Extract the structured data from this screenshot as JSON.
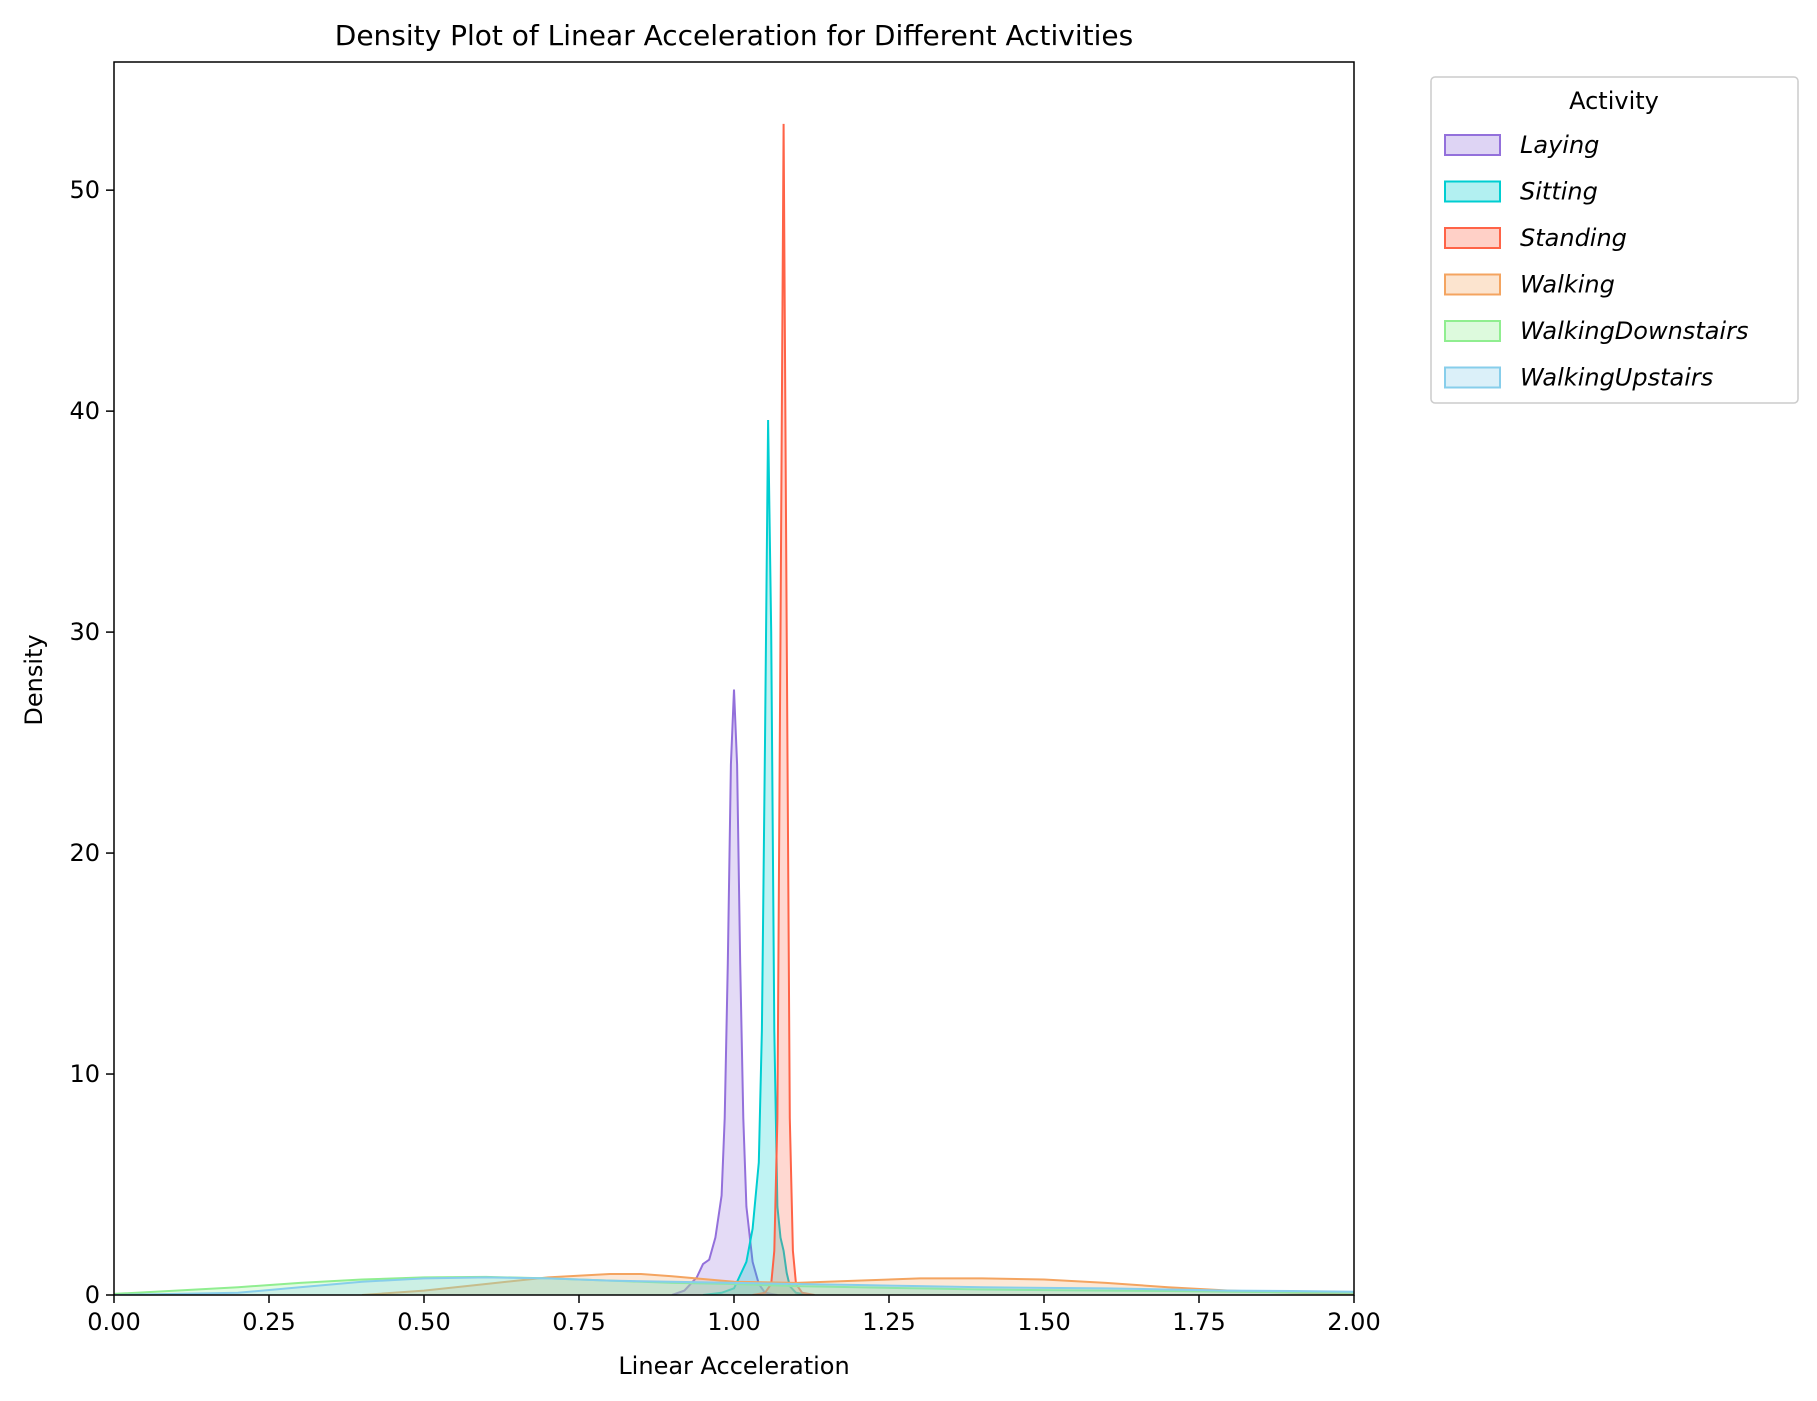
{
  "chart_data": {
    "type": "area",
    "title": "Density Plot of Linear Acceleration for Different Activities",
    "xlabel": "Linear Acceleration",
    "ylabel": "Density",
    "xlim": [
      0.0,
      2.0
    ],
    "ylim": [
      0,
      55.8
    ],
    "x_ticks": [
      "0.00",
      "0.25",
      "0.50",
      "0.75",
      "1.00",
      "1.25",
      "1.50",
      "1.75",
      "2.00"
    ],
    "y_ticks": [
      "0",
      "10",
      "20",
      "30",
      "40",
      "50"
    ],
    "grid": false,
    "legend": {
      "title": "Activity",
      "placement": "outside-top-right"
    },
    "series": [
      {
        "name": "Laying",
        "color": "#9370db",
        "points": [
          [
            0.9,
            0
          ],
          [
            0.92,
            0.2
          ],
          [
            0.94,
            0.8
          ],
          [
            0.95,
            1.4
          ],
          [
            0.96,
            1.6
          ],
          [
            0.97,
            2.6
          ],
          [
            0.98,
            4.5
          ],
          [
            0.985,
            8
          ],
          [
            0.99,
            15
          ],
          [
            0.995,
            24
          ],
          [
            1.0,
            27.4
          ],
          [
            1.005,
            24
          ],
          [
            1.01,
            15
          ],
          [
            1.015,
            8
          ],
          [
            1.02,
            4
          ],
          [
            1.03,
            1.5
          ],
          [
            1.04,
            0.5
          ],
          [
            1.05,
            0.1
          ],
          [
            1.07,
            0
          ]
        ]
      },
      {
        "name": "Sitting",
        "color": "#00ced1",
        "points": [
          [
            0.95,
            0
          ],
          [
            0.98,
            0.1
          ],
          [
            1.0,
            0.3
          ],
          [
            1.02,
            1.5
          ],
          [
            1.03,
            3
          ],
          [
            1.04,
            6
          ],
          [
            1.045,
            12
          ],
          [
            1.05,
            25
          ],
          [
            1.055,
            39.6
          ],
          [
            1.06,
            30
          ],
          [
            1.065,
            12
          ],
          [
            1.07,
            4
          ],
          [
            1.075,
            2.6
          ],
          [
            1.08,
            2
          ],
          [
            1.085,
            1
          ],
          [
            1.09,
            0.4
          ],
          [
            1.1,
            0.1
          ],
          [
            1.12,
            0
          ]
        ]
      },
      {
        "name": "Standing",
        "color": "#ff6347",
        "points": [
          [
            1.03,
            0
          ],
          [
            1.05,
            0.1
          ],
          [
            1.06,
            0.5
          ],
          [
            1.065,
            2
          ],
          [
            1.07,
            8
          ],
          [
            1.075,
            30
          ],
          [
            1.08,
            53
          ],
          [
            1.085,
            30
          ],
          [
            1.09,
            8
          ],
          [
            1.095,
            2
          ],
          [
            1.1,
            0.5
          ],
          [
            1.11,
            0.1
          ],
          [
            1.13,
            0
          ]
        ]
      },
      {
        "name": "Walking",
        "color": "#f4a460",
        "points": [
          [
            0.4,
            0
          ],
          [
            0.5,
            0.2
          ],
          [
            0.6,
            0.5
          ],
          [
            0.7,
            0.8
          ],
          [
            0.8,
            0.95
          ],
          [
            0.85,
            0.95
          ],
          [
            0.9,
            0.85
          ],
          [
            1.0,
            0.6
          ],
          [
            1.1,
            0.55
          ],
          [
            1.2,
            0.65
          ],
          [
            1.3,
            0.75
          ],
          [
            1.4,
            0.75
          ],
          [
            1.5,
            0.7
          ],
          [
            1.6,
            0.55
          ],
          [
            1.7,
            0.35
          ],
          [
            1.8,
            0.2
          ],
          [
            1.9,
            0.1
          ],
          [
            2.0,
            0.05
          ]
        ]
      },
      {
        "name": "WalkingDownstairs",
        "color": "#90ee90",
        "points": [
          [
            0.0,
            0.05
          ],
          [
            0.1,
            0.2
          ],
          [
            0.2,
            0.35
          ],
          [
            0.3,
            0.55
          ],
          [
            0.4,
            0.7
          ],
          [
            0.5,
            0.8
          ],
          [
            0.6,
            0.82
          ],
          [
            0.7,
            0.75
          ],
          [
            0.8,
            0.65
          ],
          [
            0.9,
            0.55
          ],
          [
            1.0,
            0.5
          ],
          [
            1.1,
            0.4
          ],
          [
            1.2,
            0.35
          ],
          [
            1.3,
            0.3
          ],
          [
            1.4,
            0.25
          ],
          [
            1.5,
            0.22
          ],
          [
            1.6,
            0.2
          ],
          [
            1.7,
            0.18
          ],
          [
            1.8,
            0.15
          ],
          [
            1.9,
            0.12
          ],
          [
            2.0,
            0.1
          ]
        ]
      },
      {
        "name": "WalkingUpstairs",
        "color": "#87ceeb",
        "points": [
          [
            0.0,
            0.0
          ],
          [
            0.2,
            0.1
          ],
          [
            0.3,
            0.35
          ],
          [
            0.4,
            0.6
          ],
          [
            0.5,
            0.75
          ],
          [
            0.6,
            0.8
          ],
          [
            0.7,
            0.75
          ],
          [
            0.8,
            0.65
          ],
          [
            0.9,
            0.6
          ],
          [
            1.0,
            0.55
          ],
          [
            1.1,
            0.5
          ],
          [
            1.2,
            0.45
          ],
          [
            1.3,
            0.4
          ],
          [
            1.4,
            0.35
          ],
          [
            1.5,
            0.32
          ],
          [
            1.6,
            0.3
          ],
          [
            1.7,
            0.25
          ],
          [
            1.8,
            0.2
          ],
          [
            1.9,
            0.18
          ],
          [
            2.0,
            0.15
          ]
        ]
      }
    ]
  }
}
